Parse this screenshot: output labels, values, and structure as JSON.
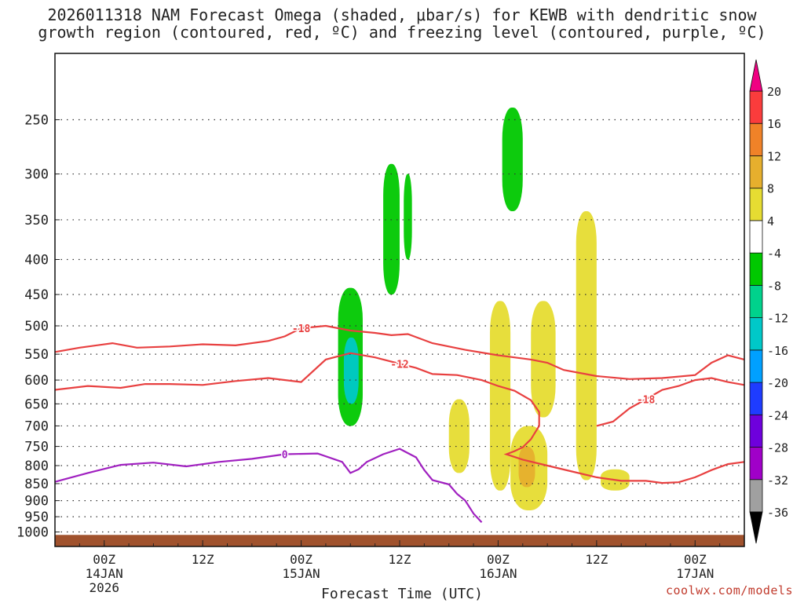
{
  "title_line1": "2026011318 NAM Forecast Omega (shaded, μbar/s) for KEWB with dendritic snow",
  "title_line2": "growth region (contoured, red, ºC) and freezing level (contoured, purple, ºC)",
  "credit": "coolwx.com/models",
  "chart_data": {
    "type": "heatmap",
    "xlabel": "Forecast Time (UTC)",
    "ylabel": "",
    "x_range_hours": [
      0,
      84
    ],
    "x_ticks": [
      {
        "hour": 6,
        "label": "00Z",
        "sub": "14JAN",
        "sub2": "2026"
      },
      {
        "hour": 18,
        "label": "12Z",
        "sub": "",
        "sub2": ""
      },
      {
        "hour": 30,
        "label": "00Z",
        "sub": "15JAN",
        "sub2": ""
      },
      {
        "hour": 42,
        "label": "12Z",
        "sub": "",
        "sub2": ""
      },
      {
        "hour": 54,
        "label": "00Z",
        "sub": "16JAN",
        "sub2": ""
      },
      {
        "hour": 66,
        "label": "12Z",
        "sub": "",
        "sub2": ""
      },
      {
        "hour": 78,
        "label": "00Z",
        "sub": "17JAN",
        "sub2": ""
      }
    ],
    "y_axis_log_pressure": true,
    "ylim_hpa": [
      1050,
      200
    ],
    "y_ticks": [
      250,
      300,
      350,
      400,
      450,
      500,
      550,
      600,
      650,
      700,
      750,
      800,
      850,
      900,
      950,
      1000
    ],
    "grid": true,
    "colorbar": {
      "levels": [
        -36,
        -32,
        -28,
        -24,
        -20,
        -16,
        -12,
        -8,
        -4,
        4,
        8,
        12,
        16,
        20
      ],
      "colors": [
        "#a0a0a0",
        "#a000c8",
        "#6e00dc",
        "#1e3cff",
        "#00a0ff",
        "#00c8c8",
        "#00d28c",
        "#00c800",
        "#ffffff",
        "#e6dc32",
        "#e6af2d",
        "#f08228",
        "#fa3c3c",
        "#f00082"
      ]
    },
    "contours": [
      {
        "label": "-18",
        "color": "#e84040",
        "points": [
          [
            0,
            546
          ],
          [
            3,
            538
          ],
          [
            7,
            530
          ],
          [
            10,
            538
          ],
          [
            14,
            536
          ],
          [
            18,
            532
          ],
          [
            22,
            534
          ],
          [
            26,
            526
          ],
          [
            28,
            518
          ],
          [
            30,
            504
          ],
          [
            33,
            500
          ],
          [
            36,
            508
          ],
          [
            39,
            512
          ],
          [
            41,
            516
          ],
          [
            43,
            514
          ],
          [
            46,
            530
          ],
          [
            50,
            542
          ],
          [
            54,
            552
          ],
          [
            58,
            560
          ],
          [
            60,
            566
          ],
          [
            62,
            580
          ],
          [
            66,
            592
          ],
          [
            70,
            598
          ],
          [
            74,
            596
          ],
          [
            78,
            590
          ],
          [
            80,
            566
          ],
          [
            82,
            552
          ],
          [
            84,
            560
          ]
        ]
      },
      {
        "label": "-12",
        "color": "#e84040",
        "points": [
          [
            0,
            620
          ],
          [
            4,
            612
          ],
          [
            8,
            616
          ],
          [
            11,
            608
          ],
          [
            14,
            608
          ],
          [
            18,
            610
          ],
          [
            22,
            602
          ],
          [
            26,
            596
          ],
          [
            30,
            604
          ],
          [
            33,
            560
          ],
          [
            36,
            548
          ],
          [
            39,
            556
          ],
          [
            42,
            568
          ],
          [
            44,
            576
          ],
          [
            46,
            588
          ],
          [
            49,
            590
          ],
          [
            52,
            600
          ],
          [
            54,
            612
          ],
          [
            56,
            622
          ],
          [
            58,
            642
          ],
          [
            59,
            668
          ],
          [
            59,
            700
          ],
          [
            58,
            732
          ],
          [
            57,
            752
          ],
          [
            56,
            762
          ],
          [
            55,
            770
          ],
          [
            57,
            784
          ],
          [
            60,
            800
          ],
          [
            63,
            816
          ],
          [
            66,
            832
          ],
          [
            69,
            842
          ],
          [
            72,
            842
          ],
          [
            74,
            848
          ],
          [
            76,
            846
          ],
          [
            78,
            832
          ],
          [
            80,
            812
          ],
          [
            82,
            796
          ],
          [
            84,
            790
          ]
        ]
      },
      {
        "label": "-18",
        "color": "#e84040",
        "points": [
          [
            66,
            700
          ],
          [
            68,
            690
          ],
          [
            70,
            660
          ],
          [
            72,
            640
          ],
          [
            74,
            620
          ],
          [
            76,
            612
          ],
          [
            78,
            600
          ],
          [
            80,
            596
          ],
          [
            82,
            604
          ],
          [
            84,
            610
          ]
        ]
      },
      {
        "label": "0",
        "color": "#a020c0",
        "points": [
          [
            0,
            845
          ],
          [
            4,
            820
          ],
          [
            8,
            798
          ],
          [
            12,
            792
          ],
          [
            16,
            802
          ],
          [
            20,
            790
          ],
          [
            24,
            782
          ],
          [
            28,
            770
          ],
          [
            32,
            768
          ],
          [
            35,
            790
          ],
          [
            36,
            820
          ],
          [
            37,
            810
          ],
          [
            38,
            790
          ],
          [
            40,
            770
          ],
          [
            42,
            756
          ],
          [
            44,
            778
          ],
          [
            45,
            812
          ],
          [
            46,
            840
          ],
          [
            48,
            852
          ],
          [
            49,
            880
          ],
          [
            50,
            900
          ],
          [
            51,
            940
          ],
          [
            52,
            968
          ]
        ]
      }
    ],
    "shaded_regions": [
      {
        "value": -6,
        "label": "green",
        "hours": [
          34.5,
          37.5
        ],
        "hpa": [
          440,
          700
        ]
      },
      {
        "value": -14,
        "label": "teal",
        "hours": [
          35.2,
          37.0
        ],
        "hpa": [
          520,
          650
        ]
      },
      {
        "value": -6,
        "label": "green",
        "hours": [
          40.0,
          42.0
        ],
        "hpa": [
          290,
          450
        ]
      },
      {
        "value": -6,
        "label": "green",
        "hours": [
          42.5,
          43.5
        ],
        "hpa": [
          300,
          400
        ]
      },
      {
        "value": -6,
        "label": "green",
        "hours": [
          54.5,
          57.0
        ],
        "hpa": [
          240,
          340
        ]
      },
      {
        "value": 6,
        "label": "yellow",
        "hours": [
          63.5,
          66.0
        ],
        "hpa": [
          340,
          840
        ]
      },
      {
        "value": 6,
        "label": "yellow",
        "hours": [
          48.0,
          50.5
        ],
        "hpa": [
          640,
          820
        ]
      },
      {
        "value": 6,
        "label": "yellow",
        "hours": [
          53.0,
          55.5
        ],
        "hpa": [
          460,
          870
        ]
      },
      {
        "value": 6,
        "label": "yellow",
        "hours": [
          55.5,
          60.0
        ],
        "hpa": [
          700,
          930
        ]
      },
      {
        "value": 10,
        "label": "orange",
        "hours": [
          56.5,
          58.5
        ],
        "hpa": [
          750,
          860
        ]
      },
      {
        "value": 6,
        "label": "yellow",
        "hours": [
          58.0,
          61.0
        ],
        "hpa": [
          460,
          680
        ]
      },
      {
        "value": 6,
        "label": "yellow",
        "hours": [
          66.5,
          70.0
        ],
        "hpa": [
          810,
          870
        ]
      }
    ]
  }
}
